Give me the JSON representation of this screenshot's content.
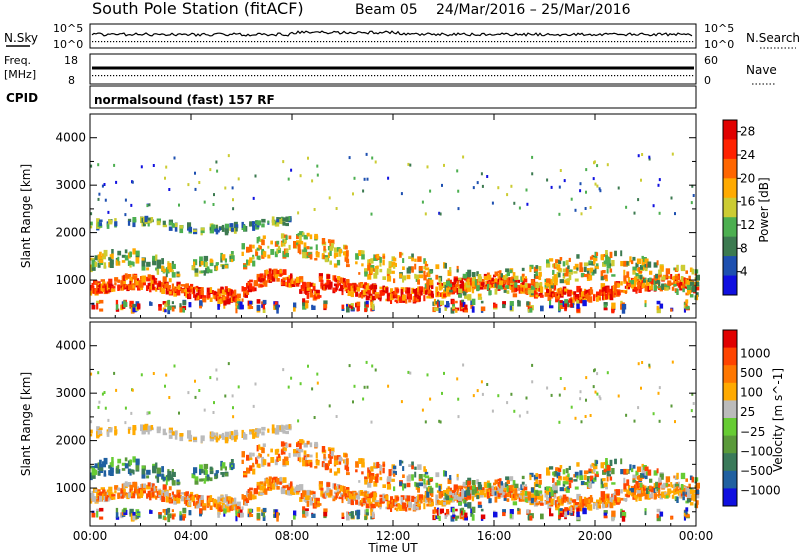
{
  "header": {
    "station": "South Pole Station (fitACF)",
    "beam": "Beam 05",
    "date_range": "24/Mar/2016 – 25/Mar/2016"
  },
  "top_panel": {
    "left_label_1": "N.Sky",
    "right_label_1": "N.Search",
    "left_ticks_1": [
      "10^5",
      "10^0"
    ],
    "right_ticks_1": [
      "10^5",
      "10^0"
    ],
    "left_label_2": "Freq.",
    "left_label_2b": "[MHz]",
    "right_label_2": "Nave",
    "left_ticks_2": [
      "18",
      "8"
    ],
    "right_ticks_2": [
      "60",
      "0"
    ],
    "cpid_label": "CPID",
    "cpid_value": "normalsound (fast) 157 RF"
  },
  "colors": {
    "power_scale": [
      "#1010e0",
      "#1e50b0",
      "#3c7a50",
      "#4caf50",
      "#cccc33",
      "#ffaa00",
      "#ff6600",
      "#ff2200",
      "#e00000"
    ],
    "velocity_scale": [
      "#1010e0",
      "#2060a0",
      "#3a7a5a",
      "#5a9a3a",
      "#66cc33",
      "#bbbbbb",
      "#ffaa00",
      "#ff7700",
      "#ff4400",
      "#e00000"
    ]
  },
  "chart_data": [
    {
      "type": "heatmap",
      "name": "power",
      "ylabel": "Slant Range [km]",
      "yticks": [
        "1000",
        "2000",
        "3000",
        "4000"
      ],
      "ylim": [
        200,
        4500
      ],
      "colorbar_label": "Power [dB]",
      "colorbar_ticks": [
        "4",
        "8",
        "12",
        "16",
        "20",
        "24",
        "28"
      ],
      "colorbar_range": [
        0,
        30
      ]
    },
    {
      "type": "heatmap",
      "name": "velocity",
      "ylabel": "Slant Range [km]",
      "yticks": [
        "1000",
        "2000",
        "3000",
        "4000"
      ],
      "ylim": [
        200,
        4500
      ],
      "colorbar_label": "Velocity [m s^-1]",
      "colorbar_ticks": [
        "1000",
        "500",
        "100",
        "25",
        "−25",
        "−100",
        "−500",
        "−1000"
      ]
    }
  ],
  "xaxis": {
    "ticks": [
      "00:00",
      "04:00",
      "08:00",
      "12:00",
      "16:00",
      "20:00",
      "00:00"
    ],
    "label": "Time UT"
  }
}
